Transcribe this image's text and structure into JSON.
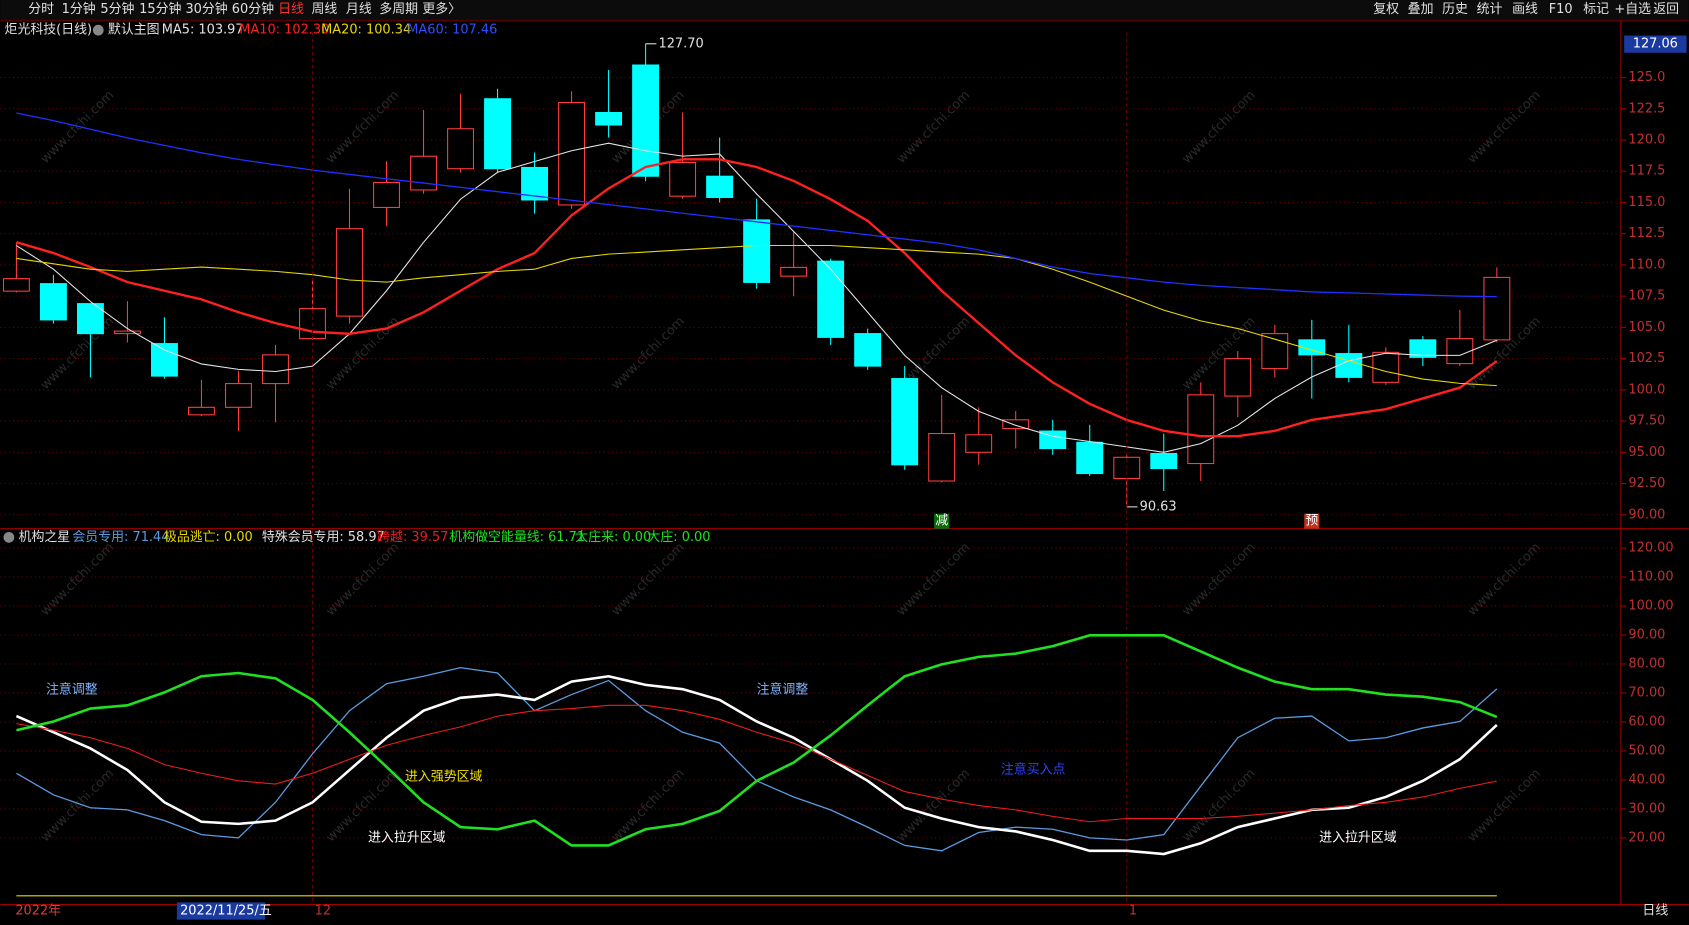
{
  "toolbar": {
    "left": [
      "分时",
      "1分钟",
      "5分钟",
      "15分钟",
      "30分钟",
      "60分钟",
      "日线",
      "周线",
      "月线",
      "多周期",
      "更多〉"
    ],
    "active": 6,
    "right": [
      "复权",
      "叠加",
      "历史",
      "统计",
      "画线",
      "F10",
      "标记",
      "+自选",
      "返回"
    ]
  },
  "watermark": "www.cfchi.com",
  "period": "日线",
  "chart_data": [
    {
      "type": "candlestick",
      "title": "炬光科技(日线)",
      "subtitle": "默认主图",
      "axis_cursor_label": "127.06",
      "up_color": "#ff3c3c",
      "down_color": "#00ffff",
      "ylim": [
        89.14,
        128.62
      ],
      "yticks": [
        {
          "value": 90,
          "label": "90.00"
        },
        {
          "value": 92.5,
          "label": "92.50"
        },
        {
          "value": 95,
          "label": "95.00"
        },
        {
          "value": 97.5,
          "label": "97.50"
        },
        {
          "value": 100,
          "label": "100.0"
        },
        {
          "value": 102.5,
          "label": "102.5"
        },
        {
          "value": 105,
          "label": "105.0"
        },
        {
          "value": 107.5,
          "label": "107.5"
        },
        {
          "value": 110,
          "label": "110.0"
        },
        {
          "value": 112.5,
          "label": "112.5"
        },
        {
          "value": 115,
          "label": "115.0"
        },
        {
          "value": 117.5,
          "label": "117.5"
        },
        {
          "value": 120,
          "label": "120.0"
        },
        {
          "value": 122.5,
          "label": "122.5"
        },
        {
          "value": 125,
          "label": "125.0"
        }
      ],
      "grid": true,
      "candles": [
        [
          107.9,
          111.8,
          107.8,
          108.9
        ],
        [
          108.5,
          109.2,
          105.3,
          105.6
        ],
        [
          106.9,
          106.9,
          101.0,
          104.5
        ],
        [
          104.5,
          107.1,
          103.8,
          104.7
        ],
        [
          103.7,
          105.8,
          100.9,
          101.1
        ],
        [
          98.0,
          100.8,
          97.9,
          98.6
        ],
        [
          98.6,
          101.5,
          96.7,
          100.5
        ],
        [
          100.5,
          103.6,
          97.4,
          102.8
        ],
        [
          104.1,
          108.8,
          104.0,
          106.5
        ],
        [
          105.9,
          116.1,
          105.3,
          112.9
        ],
        [
          114.6,
          118.3,
          113.1,
          116.6
        ],
        [
          116.0,
          122.4,
          115.7,
          118.7
        ],
        [
          117.7,
          123.7,
          117.4,
          120.9
        ],
        [
          123.3,
          124.1,
          117.4,
          117.7
        ],
        [
          117.8,
          119.0,
          114.1,
          115.2
        ],
        [
          114.8,
          123.9,
          114.5,
          123.0
        ],
        [
          122.2,
          125.6,
          120.2,
          121.2
        ],
        [
          126.0,
          127.7,
          116.7,
          117.1
        ],
        [
          115.5,
          122.2,
          115.3,
          118.2
        ],
        [
          117.1,
          120.2,
          115.0,
          115.4
        ],
        [
          113.6,
          115.3,
          108.1,
          108.6
        ],
        [
          109.1,
          112.7,
          107.5,
          109.8
        ],
        [
          110.3,
          110.5,
          103.6,
          104.2
        ],
        [
          104.5,
          104.9,
          101.6,
          101.9
        ],
        [
          100.9,
          101.9,
          93.6,
          94.0
        ],
        [
          92.7,
          99.6,
          92.6,
          96.5
        ],
        [
          95.0,
          98.6,
          94.0,
          96.4
        ],
        [
          96.9,
          98.3,
          95.3,
          97.6
        ],
        [
          96.7,
          97.6,
          94.8,
          95.3
        ],
        [
          95.8,
          97.2,
          93.1,
          93.3
        ],
        [
          92.9,
          94.8,
          90.63,
          94.6
        ],
        [
          94.9,
          96.5,
          91.9,
          93.7
        ],
        [
          94.1,
          100.6,
          92.7,
          99.6
        ],
        [
          99.5,
          103.1,
          97.8,
          102.5
        ],
        [
          101.7,
          105.2,
          101.0,
          104.5
        ],
        [
          104.0,
          105.6,
          99.3,
          102.8
        ],
        [
          102.9,
          105.2,
          100.6,
          101.0
        ],
        [
          100.6,
          103.4,
          100.4,
          103.0
        ],
        [
          104.0,
          104.3,
          101.9,
          102.6
        ],
        [
          102.1,
          106.4,
          101.9,
          104.1
        ],
        [
          104.0,
          109.8,
          103.8,
          109.0
        ]
      ],
      "series": [
        {
          "name": "MA5",
          "label": "MA5: 103.97",
          "color": "#e6e6e6",
          "width": 1,
          "values": [
            111.55,
            109.66,
            107.07,
            104.91,
            103.19,
            102.07,
            101.64,
            101.47,
            101.9,
            104.48,
            107.93,
            111.81,
            115.26,
            117.41,
            118.28,
            119.14,
            119.74,
            119.14,
            118.71,
            118.88,
            115.69,
            112.67,
            109.66,
            106.21,
            102.76,
            100.17,
            98.28,
            97.16,
            96.29,
            95.86,
            95.43,
            95.0,
            95.69,
            97.16,
            99.31,
            101.03,
            102.33,
            102.93,
            102.76,
            102.76,
            103.97
          ]
        },
        {
          "name": "MA10",
          "label": "MA10: 102.30",
          "color": "#ff2020",
          "width": 2.2,
          "values": [
            111.81,
            110.95,
            109.83,
            108.62,
            107.93,
            107.24,
            106.21,
            105.34,
            104.66,
            104.48,
            104.91,
            106.21,
            107.93,
            109.66,
            110.95,
            113.97,
            116.12,
            117.84,
            118.45,
            118.45,
            117.84,
            116.72,
            115.26,
            113.53,
            110.95,
            107.93,
            105.34,
            102.76,
            100.6,
            98.88,
            97.59,
            96.72,
            96.29,
            96.29,
            96.72,
            97.59,
            98.02,
            98.45,
            99.31,
            100.17,
            102.3
          ]
        },
        {
          "name": "MA20",
          "label": "MA20: 100.34",
          "color": "#e8d800",
          "width": 1,
          "values": [
            110.52,
            110.09,
            109.66,
            109.48,
            109.66,
            109.83,
            109.66,
            109.48,
            109.22,
            108.79,
            108.62,
            108.97,
            109.22,
            109.48,
            109.66,
            110.52,
            110.86,
            111.03,
            111.21,
            111.38,
            111.55,
            111.55,
            111.55,
            111.38,
            111.21,
            111.03,
            110.86,
            110.52,
            109.66,
            108.62,
            107.5,
            106.38,
            105.52,
            104.91,
            104.05,
            103.19,
            102.33,
            101.47,
            100.86,
            100.52,
            100.34
          ]
        },
        {
          "name": "MA60",
          "label": "MA60: 107.46",
          "color": "#2030ff",
          "width": 1.2,
          "values": [
            122.16,
            121.55,
            120.86,
            120.17,
            119.57,
            118.97,
            118.45,
            118.02,
            117.59,
            117.24,
            116.9,
            116.55,
            116.21,
            115.86,
            115.52,
            115.17,
            114.83,
            114.48,
            114.14,
            113.79,
            113.45,
            113.1,
            112.76,
            112.41,
            112.07,
            111.72,
            111.21,
            110.52,
            109.83,
            109.31,
            108.97,
            108.62,
            108.36,
            108.19,
            108.02,
            107.84,
            107.76,
            107.67,
            107.59,
            107.5,
            107.46
          ]
        }
      ],
      "annotations": [
        {
          "label": "127.70",
          "x": 17,
          "y": 127.7,
          "side": "right"
        },
        {
          "label": "90.63",
          "x": 30,
          "y": 90.63,
          "side": "right"
        }
      ],
      "markers": [
        {
          "label": "减",
          "x": 25,
          "color": "#0b6b0b"
        },
        {
          "label": "预",
          "x": 35,
          "color": "#c0301a"
        }
      ]
    },
    {
      "type": "line",
      "title": "机构之星",
      "ylim": [
        -3,
        126.3
      ],
      "yticks": [
        {
          "value": 20,
          "label": "20.00"
        },
        {
          "value": 30,
          "label": "30.00"
        },
        {
          "value": 40,
          "label": "40.00"
        },
        {
          "value": 50,
          "label": "50.00"
        },
        {
          "value": 60,
          "label": "60.00"
        },
        {
          "value": 70,
          "label": "70.00"
        },
        {
          "value": 80,
          "label": "80.00"
        },
        {
          "value": 90,
          "label": "90.00"
        },
        {
          "value": 100,
          "label": "100.00"
        },
        {
          "value": 110,
          "label": "110.00"
        },
        {
          "value": 120,
          "label": "120.00"
        }
      ],
      "grid": true,
      "xticks": [
        {
          "value": 8,
          "label": "12"
        },
        {
          "value": 30,
          "label": "1"
        }
      ],
      "x_axis_year": "2022年",
      "cursor_date": "2022/11/25/五",
      "series": [
        {
          "name": "会员专用",
          "label": "会员专用: 71.44",
          "color": "#5b9be0",
          "width": 1.2,
          "values": [
            42.3,
            34.87,
            30.41,
            29.67,
            25.95,
            21.12,
            20.0,
            32.27,
            49.0,
            63.87,
            73.16,
            75.76,
            78.74,
            76.88,
            63.87,
            69.44,
            74.28,
            63.87,
            56.43,
            52.71,
            39.7,
            34.13,
            29.67,
            23.72,
            17.4,
            15.54,
            21.86,
            23.72,
            22.97,
            20.0,
            19.26,
            21.12,
            37.84,
            54.57,
            61.26,
            62.01,
            53.46,
            54.57,
            57.92,
            60.15,
            71.44
          ]
        },
        {
          "name": "极品逃亡",
          "label": "极品逃亡: 0.00",
          "color": "#e8d800",
          "width": 1,
          "values": [
            0,
            0,
            0,
            0,
            0,
            0,
            0,
            0,
            0,
            0,
            0,
            0,
            0,
            0,
            0,
            0,
            0,
            0,
            0,
            0,
            0,
            0,
            0,
            0,
            0,
            0,
            0,
            0,
            0,
            0,
            0,
            0,
            0,
            0,
            0,
            0,
            0,
            0,
            0,
            0,
            0
          ]
        },
        {
          "name": "特殊会员专用",
          "label": "特殊会员专用: 58.97",
          "color": "#ffffff",
          "width": 2.4,
          "values": [
            62.01,
            56.43,
            50.86,
            43.42,
            32.27,
            25.58,
            24.83,
            25.95,
            32.27,
            43.42,
            54.57,
            63.87,
            68.33,
            69.44,
            67.58,
            73.9,
            75.76,
            72.79,
            71.3,
            67.58,
            60.15,
            54.57,
            47.14,
            39.7,
            30.41,
            26.69,
            23.72,
            22.23,
            19.26,
            15.54,
            15.54,
            14.42,
            18.14,
            23.72,
            26.69,
            29.67,
            30.41,
            34.13,
            39.7,
            47.14,
            58.97
          ]
        },
        {
          "name": "跨越",
          "label": "跨越: 39.57",
          "color": "#ee1c1c",
          "width": 1,
          "values": [
            59.41,
            57.17,
            54.57,
            50.86,
            45.28,
            42.3,
            39.7,
            38.59,
            42.3,
            47.14,
            51.97,
            55.32,
            58.29,
            62.01,
            63.87,
            64.61,
            65.72,
            65.72,
            63.87,
            60.89,
            56.43,
            52.71,
            47.14,
            41.56,
            35.99,
            33.38,
            31.15,
            29.67,
            27.43,
            25.58,
            26.69,
            26.69,
            26.69,
            27.43,
            28.55,
            29.67,
            31.15,
            32.27,
            34.13,
            37.1,
            39.57
          ]
        },
        {
          "name": "机构做空能量线",
          "label": "机构做空能量线: 61.71",
          "color": "#20e020",
          "width": 2.4,
          "values": [
            57.17,
            60.15,
            64.61,
            65.72,
            70.19,
            75.76,
            76.88,
            75.02,
            67.58,
            56.43,
            44.54,
            32.27,
            23.72,
            22.97,
            25.95,
            17.4,
            17.4,
            22.97,
            24.83,
            29.29,
            39.7,
            46.02,
            55.32,
            65.72,
            75.76,
            79.85,
            82.45,
            83.57,
            86.17,
            89.89,
            89.89,
            89.89,
            84.31,
            78.74,
            73.9,
            71.3,
            71.3,
            69.44,
            68.7,
            66.84,
            61.71
          ]
        }
      ],
      "extra_labels": [
        {
          "label": "大庄来: 0.00",
          "color": "#20e020"
        },
        {
          "label": "大庄: 0.00",
          "color": "#20e020"
        }
      ],
      "annotations": [
        {
          "label": "注意调整",
          "x": 0.8,
          "y": 71,
          "color": "#7fb3ff"
        },
        {
          "label": "进入强势区域",
          "x": 10.5,
          "y": 41,
          "color": "#f0e000"
        },
        {
          "label": "进入拉升区域",
          "x": 9.5,
          "y": 20,
          "color": "#ffffff"
        },
        {
          "label": "注意调整",
          "x": 20,
          "y": 71,
          "color": "#7fb3ff"
        },
        {
          "label": "注意买入点",
          "x": 26.6,
          "y": 43.5,
          "color": "#3040ff"
        },
        {
          "label": "进入拉升区域",
          "x": 35.2,
          "y": 20,
          "color": "#ffffff"
        }
      ]
    }
  ]
}
